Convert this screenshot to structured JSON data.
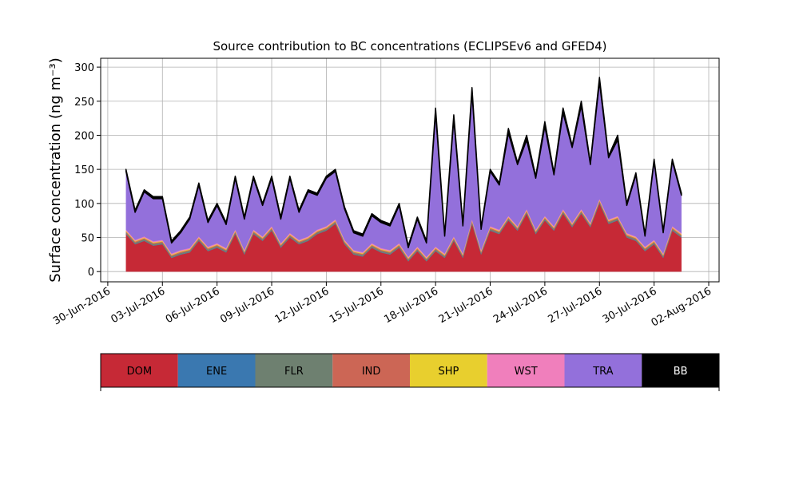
{
  "chart_data": {
    "type": "stacked_area",
    "title": "Source contribution to BC concentrations (ECLIPSEv6 and GFED4)",
    "ylabel": "Surface concentration (ng m⁻³)",
    "xlim": [
      "2016-06-29T14:38",
      "2016-08-02T13:40"
    ],
    "xticks": [
      {
        "value": "2016-06-30T00:00",
        "label": "30-Jun-2016"
      },
      {
        "value": "2016-07-03T00:00",
        "label": "03-Jul-2016"
      },
      {
        "value": "2016-07-06T00:00",
        "label": "06-Jul-2016"
      },
      {
        "value": "2016-07-09T00:00",
        "label": "09-Jul-2016"
      },
      {
        "value": "2016-07-12T00:00",
        "label": "12-Jul-2016"
      },
      {
        "value": "2016-07-15T00:00",
        "label": "15-Jul-2016"
      },
      {
        "value": "2016-07-18T00:00",
        "label": "18-Jul-2016"
      },
      {
        "value": "2016-07-21T00:00",
        "label": "21-Jul-2016"
      },
      {
        "value": "2016-07-24T00:00",
        "label": "24-Jul-2016"
      },
      {
        "value": "2016-07-27T00:00",
        "label": "27-Jul-2016"
      },
      {
        "value": "2016-07-30T00:00",
        "label": "30-Jul-2016"
      },
      {
        "value": "2016-08-02T00:00",
        "label": "02-Aug-2016"
      }
    ],
    "ylim": [
      -15,
      313
    ],
    "yticks": [
      0,
      50,
      100,
      150,
      200,
      250,
      300
    ],
    "grid": true,
    "x": [
      "2016-07-01T00:00",
      "2016-07-01T12:00",
      "2016-07-02T00:00",
      "2016-07-02T12:00",
      "2016-07-03T00:00",
      "2016-07-03T12:00",
      "2016-07-04T00:00",
      "2016-07-04T12:00",
      "2016-07-05T00:00",
      "2016-07-05T12:00",
      "2016-07-06T00:00",
      "2016-07-06T12:00",
      "2016-07-07T00:00",
      "2016-07-07T12:00",
      "2016-07-08T00:00",
      "2016-07-08T12:00",
      "2016-07-09T00:00",
      "2016-07-09T12:00",
      "2016-07-10T00:00",
      "2016-07-10T12:00",
      "2016-07-11T00:00",
      "2016-07-11T12:00",
      "2016-07-12T00:00",
      "2016-07-12T12:00",
      "2016-07-13T00:00",
      "2016-07-13T12:00",
      "2016-07-14T00:00",
      "2016-07-14T12:00",
      "2016-07-15T00:00",
      "2016-07-15T12:00",
      "2016-07-16T00:00",
      "2016-07-16T12:00",
      "2016-07-17T00:00",
      "2016-07-17T12:00",
      "2016-07-18T00:00",
      "2016-07-18T12:00",
      "2016-07-19T00:00",
      "2016-07-19T12:00",
      "2016-07-20T00:00",
      "2016-07-20T12:00",
      "2016-07-21T00:00",
      "2016-07-21T12:00",
      "2016-07-22T00:00",
      "2016-07-22T12:00",
      "2016-07-23T00:00",
      "2016-07-23T12:00",
      "2016-07-24T00:00",
      "2016-07-24T12:00",
      "2016-07-25T00:00",
      "2016-07-25T12:00",
      "2016-07-26T00:00",
      "2016-07-26T12:00",
      "2016-07-27T00:00",
      "2016-07-27T12:00",
      "2016-07-28T00:00",
      "2016-07-28T12:00",
      "2016-07-29T00:00",
      "2016-07-29T12:00",
      "2016-07-30T00:00",
      "2016-07-30T12:00",
      "2016-07-31T00:00",
      "2016-07-31T12:00"
    ],
    "series": [
      {
        "name": "DOM",
        "color": "#c62936",
        "values": [
          55,
          40,
          45,
          38,
          40,
          20,
          25,
          28,
          45,
          30,
          35,
          28,
          55,
          25,
          55,
          45,
          60,
          35,
          50,
          40,
          45,
          55,
          60,
          70,
          40,
          25,
          22,
          35,
          28,
          25,
          35,
          15,
          30,
          15,
          30,
          20,
          45,
          20,
          70,
          25,
          60,
          55,
          75,
          60,
          85,
          55,
          75,
          60,
          85,
          65,
          85,
          65,
          100,
          70,
          75,
          50,
          45,
          30,
          40,
          20,
          60,
          50
        ]
      },
      {
        "name": "ENE",
        "color": "#3a78b0",
        "values": [
          0.5,
          0.5,
          0.5,
          0.5,
          0.5,
          0.5,
          0.5,
          0.5,
          0.5,
          0.5,
          0.5,
          0.5,
          0.5,
          0.5,
          0.5,
          0.5,
          0.5,
          0.5,
          0.5,
          0.5,
          0.5,
          0.5,
          0.5,
          0.5,
          0.5,
          0.5,
          0.5,
          0.5,
          0.5,
          0.5,
          0.5,
          0.5,
          0.5,
          0.5,
          0.5,
          0.5,
          0.5,
          0.5,
          0.5,
          0.5,
          0.5,
          0.5,
          0.5,
          0.5,
          0.5,
          0.5,
          0.5,
          0.5,
          0.5,
          0.5,
          0.5,
          0.5,
          0.5,
          0.5,
          0.5,
          0.5,
          0.5,
          0.5,
          0.5,
          0.5,
          0.5,
          0.5
        ]
      },
      {
        "name": "FLR",
        "color": "#6e8070",
        "values": [
          2,
          2,
          2,
          2,
          2,
          2,
          2,
          2,
          2,
          2,
          2,
          2,
          2,
          2,
          2,
          2,
          2,
          2,
          2,
          2,
          2,
          2,
          2,
          2,
          2,
          2,
          2,
          2,
          2,
          2,
          2,
          2,
          2,
          2,
          2,
          2,
          2,
          2,
          2,
          2,
          2,
          2,
          2,
          2,
          2,
          2,
          2,
          2,
          2,
          2,
          2,
          2,
          2,
          2,
          2,
          2,
          2,
          2,
          2,
          2,
          2,
          2
        ]
      },
      {
        "name": "IND",
        "color": "#cc6655",
        "values": [
          1.5,
          1.5,
          1.5,
          1.5,
          1.5,
          1.5,
          1.5,
          1.5,
          1.5,
          1.5,
          1.5,
          1.5,
          1.5,
          1.5,
          1.5,
          1.5,
          1.5,
          1.5,
          1.5,
          1.5,
          1.5,
          1.5,
          1.5,
          1.5,
          1.5,
          1.5,
          1.5,
          1.5,
          1.5,
          1.5,
          1.5,
          1.5,
          1.5,
          1.5,
          1.5,
          1.5,
          1.5,
          1.5,
          1.5,
          1.5,
          1.5,
          1.5,
          1.5,
          1.5,
          1.5,
          1.5,
          1.5,
          1.5,
          1.5,
          1.5,
          1.5,
          1.5,
          1.5,
          1.5,
          1.5,
          1.5,
          1.5,
          1.5,
          1.5,
          1.5,
          1.5,
          1.5
        ]
      },
      {
        "name": "SHP",
        "color": "#e8cf2e",
        "values": [
          1,
          1,
          1,
          1,
          1,
          1,
          1,
          1,
          1,
          1,
          1,
          1,
          1,
          1,
          1,
          1,
          1,
          1,
          1,
          1,
          1,
          1,
          1,
          1,
          1,
          1,
          1,
          1,
          1,
          1,
          1,
          1,
          1,
          1,
          1,
          1,
          1,
          1,
          1,
          1,
          1,
          1,
          1,
          1,
          1,
          1,
          1,
          1,
          1,
          1,
          1,
          1,
          1,
          1,
          1,
          1,
          1,
          1,
          1,
          1,
          1,
          1
        ]
      },
      {
        "name": "WST",
        "color": "#f07fbc",
        "values": [
          1.5,
          1.5,
          1.5,
          1.5,
          1.5,
          1.5,
          1.5,
          1.5,
          1.5,
          1.5,
          1.5,
          1.5,
          1.5,
          1.5,
          1.5,
          1.5,
          1.5,
          1.5,
          1.5,
          1.5,
          1.5,
          1.5,
          1.5,
          1.5,
          1.5,
          1.5,
          1.5,
          1.5,
          1.5,
          1.5,
          1.5,
          1.5,
          1.5,
          1.5,
          1.5,
          1.5,
          1.5,
          1.5,
          1.5,
          1.5,
          1.5,
          1.5,
          1.5,
          1.5,
          1.5,
          1.5,
          1.5,
          1.5,
          1.5,
          1.5,
          1.5,
          1.5,
          1.5,
          1.5,
          1.5,
          1.5,
          1.5,
          1.5,
          1.5,
          1.5,
          1.5,
          1.5
        ]
      },
      {
        "name": "TRA",
        "color": "#9370db",
        "values": [
          85.5,
          40.5,
          65.5,
          62.5,
          60.5,
          15.5,
          25.5,
          42.5,
          75.5,
          35.5,
          55.5,
          34.5,
          75.5,
          45.5,
          75.5,
          45.5,
          70.5,
          35.5,
          80.5,
          40.5,
          65.5,
          50.5,
          70.5,
          70.5,
          45.5,
          25.5,
          23.5,
          40.5,
          37.5,
          35.5,
          55.5,
          13.5,
          40.5,
          20.5,
          196.5,
          25.5,
          171.5,
          40.5,
          186.5,
          30.5,
          80.5,
          65.5,
          121.5,
          90.5,
          101.5,
          75.5,
          131.5,
          75.5,
          141.5,
          110.5,
          151.5,
          85.5,
          171.5,
          90.5,
          111.5,
          40.5,
          90.5,
          15.5,
          115.5,
          30.5,
          95.5,
          55.5
        ]
      },
      {
        "name": "BB",
        "color": "#000000",
        "values": [
          3,
          3,
          3,
          3,
          3,
          3,
          3,
          3,
          3,
          3,
          3,
          3,
          3,
          3,
          3,
          3,
          3,
          3,
          3,
          3,
          3,
          3,
          3,
          3,
          3,
          3,
          3,
          3,
          3,
          3,
          3,
          3,
          3,
          3,
          7,
          3,
          7,
          3,
          7,
          3,
          3,
          3,
          7,
          3,
          7,
          3,
          7,
          3,
          7,
          3,
          7,
          3,
          7,
          3,
          7,
          3,
          3,
          3,
          3,
          3,
          3,
          3
        ]
      }
    ]
  }
}
